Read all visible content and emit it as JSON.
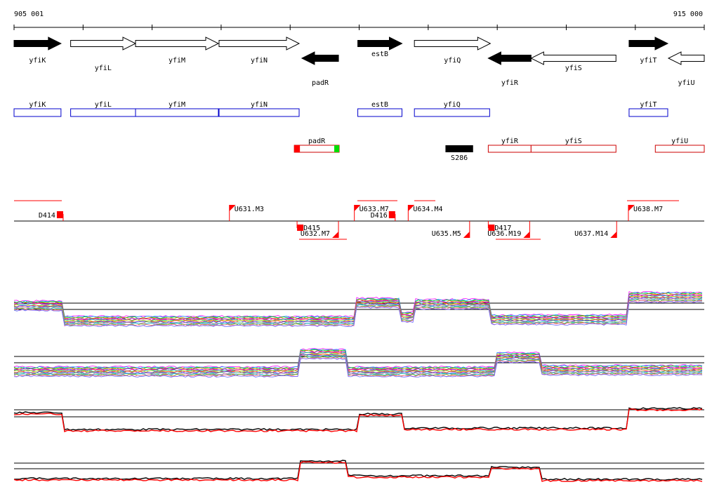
{
  "ruler": {
    "start_label": "905 001",
    "end_label": "915 000",
    "start": 905001,
    "end": 915000
  },
  "genes": [
    {
      "name": "yfiK",
      "start": 905001,
      "end": 905681,
      "strand": "+",
      "style": "filled"
    },
    {
      "name": "yfiL",
      "start": 905821,
      "end": 906761,
      "strand": "+",
      "style": "open"
    },
    {
      "name": "yfiM",
      "start": 906761,
      "end": 907961,
      "strand": "+",
      "style": "open"
    },
    {
      "name": "yfiN",
      "start": 907971,
      "end": 909131,
      "strand": "+",
      "style": "open"
    },
    {
      "name": "padR",
      "start": 909171,
      "end": 909701,
      "strand": "-",
      "style": "filled"
    },
    {
      "name": "estB",
      "start": 909981,
      "end": 910621,
      "strand": "+",
      "style": "filled"
    },
    {
      "name": "yfiQ",
      "start": 910801,
      "end": 911901,
      "strand": "+",
      "style": "open"
    },
    {
      "name": "yfiR",
      "start": 911871,
      "end": 912491,
      "strand": "-",
      "style": "filled"
    },
    {
      "name": "yfiS",
      "start": 912491,
      "end": 913721,
      "strand": "-",
      "style": "open"
    },
    {
      "name": "yfiT",
      "start": 913911,
      "end": 914471,
      "strand": "+",
      "style": "filled"
    },
    {
      "name": "yfiU",
      "start": 914481,
      "end": 915000,
      "strand": "-",
      "style": "open"
    }
  ],
  "tu_plus": [
    {
      "name": "yfiK",
      "start": 905001,
      "end": 905681
    },
    {
      "name": "yfiL",
      "start": 905821,
      "end": 906761
    },
    {
      "name": "yfiM",
      "start": 906761,
      "end": 907961
    },
    {
      "name": "yfiN",
      "start": 907971,
      "end": 909131
    },
    {
      "name": "estB",
      "start": 909981,
      "end": 910621
    },
    {
      "name": "yfiQ",
      "start": 910801,
      "end": 911891
    },
    {
      "name": "yfiT",
      "start": 913911,
      "end": 914471
    }
  ],
  "tu_minus": [
    {
      "name": "padR",
      "start": 909061,
      "end": 909711
    },
    {
      "name": "yfiR",
      "start": 911871,
      "end": 912491
    },
    {
      "name": "yfiS",
      "start": 912491,
      "end": 913721
    },
    {
      "name": "yfiU",
      "start": 914291,
      "end": 915000
    }
  ],
  "special_feature": {
    "name": "S286",
    "start": 911251,
    "end": 911651
  },
  "upper_labels": [
    {
      "name": "D414",
      "pos": 905621,
      "kind": "D"
    },
    {
      "name": "U631.M3",
      "pos": 908121,
      "kind": "U"
    },
    {
      "name": "U633.M7",
      "pos": 909931,
      "kind": "U"
    },
    {
      "name": "D416",
      "pos": 910431,
      "kind": "D"
    },
    {
      "name": "U634.M4",
      "pos": 910711,
      "kind": "U"
    },
    {
      "name": "U638.M7",
      "pos": 913901,
      "kind": "U"
    }
  ],
  "lower_labels": [
    {
      "name": "D415",
      "pos": 909101,
      "kind": "D"
    },
    {
      "name": "U632.M7",
      "pos": 909701,
      "kind": "U"
    },
    {
      "name": "U635.M5",
      "pos": 911601,
      "kind": "U"
    },
    {
      "name": "D417",
      "pos": 911871,
      "kind": "D"
    },
    {
      "name": "U636.M19",
      "pos": 912471,
      "kind": "U"
    },
    {
      "name": "U637.M14",
      "pos": 913731,
      "kind": "U"
    }
  ],
  "colors": {
    "accent": "#ff0000",
    "green": "#00dd00",
    "plus_strand": "#0000cc",
    "minus_strand": "#cc0000"
  },
  "expression_panels": [
    {
      "id": "plus-multi",
      "kind": "multi"
    },
    {
      "id": "minus-multi",
      "kind": "multi"
    },
    {
      "id": "plus-summary",
      "kind": "summary"
    },
    {
      "id": "minus-summary",
      "kind": "summary"
    }
  ]
}
